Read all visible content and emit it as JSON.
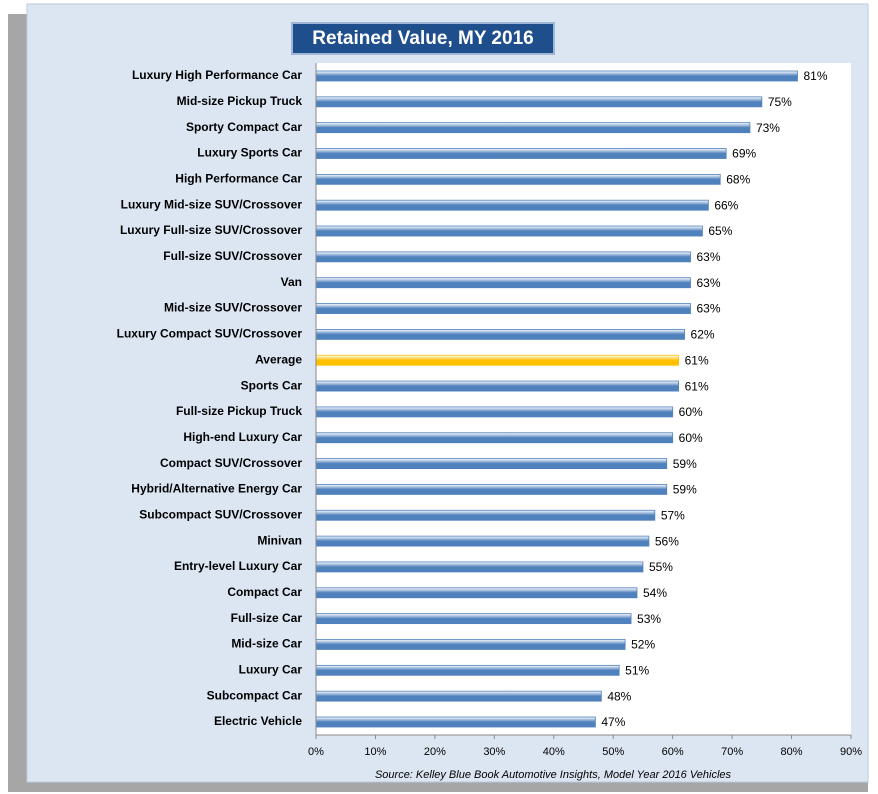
{
  "chart_data": {
    "type": "hbar",
    "title": "Retained Value, MY 2016",
    "source": "Source: Kelley Blue Book Automotive Insights, Model Year 2016 Vehicles",
    "categories": [
      "Luxury High Performance Car",
      "Mid-size Pickup Truck",
      "Sporty Compact Car",
      "Luxury Sports Car",
      "High Performance Car",
      "Luxury Mid-size SUV/Crossover",
      "Luxury Full-size SUV/Crossover",
      "Full-size SUV/Crossover",
      "Van",
      "Mid-size SUV/Crossover",
      "Luxury Compact SUV/Crossover",
      "Average",
      "Sports Car",
      "Full-size Pickup Truck",
      "High-end Luxury Car",
      "Compact SUV/Crossover",
      "Hybrid/Alternative Energy Car",
      "Subcompact SUV/Crossover",
      "Minivan",
      "Entry-level Luxury Car",
      "Compact Car",
      "Full-size Car",
      "Mid-size Car",
      "Luxury Car",
      "Subcompact Car",
      "Electric Vehicle"
    ],
    "values": [
      81,
      75,
      73,
      69,
      68,
      66,
      65,
      63,
      63,
      63,
      62,
      61,
      61,
      60,
      60,
      59,
      59,
      57,
      56,
      55,
      54,
      53,
      52,
      51,
      48,
      47
    ],
    "value_labels": [
      "81%",
      "75%",
      "73%",
      "69%",
      "68%",
      "66%",
      "65%",
      "63%",
      "63%",
      "63%",
      "62%",
      "61%",
      "61%",
      "60%",
      "60%",
      "59%",
      "59%",
      "57%",
      "56%",
      "55%",
      "54%",
      "53%",
      "52%",
      "51%",
      "48%",
      "47%"
    ],
    "colors": [
      "#4f81bd",
      "#4f81bd",
      "#4f81bd",
      "#4f81bd",
      "#4f81bd",
      "#4f81bd",
      "#4f81bd",
      "#4f81bd",
      "#4f81bd",
      "#4f81bd",
      "#4f81bd",
      "#ffc000",
      "#4f81bd",
      "#4f81bd",
      "#4f81bd",
      "#4f81bd",
      "#4f81bd",
      "#4f81bd",
      "#4f81bd",
      "#4f81bd",
      "#4f81bd",
      "#4f81bd",
      "#4f81bd",
      "#4f81bd",
      "#4f81bd",
      "#4f81bd"
    ],
    "xlim": [
      0,
      90
    ],
    "xticks": [
      {
        "value": 0,
        "label": "0%"
      },
      {
        "value": 10,
        "label": "10%"
      },
      {
        "value": 20,
        "label": "20%"
      },
      {
        "value": 30,
        "label": "30%"
      },
      {
        "value": 40,
        "label": "40%"
      },
      {
        "value": 50,
        "label": "50%"
      },
      {
        "value": 60,
        "label": "60%"
      },
      {
        "value": 70,
        "label": "70%"
      },
      {
        "value": 80,
        "label": "80%"
      },
      {
        "value": 90,
        "label": "90%"
      }
    ],
    "grid": false
  }
}
